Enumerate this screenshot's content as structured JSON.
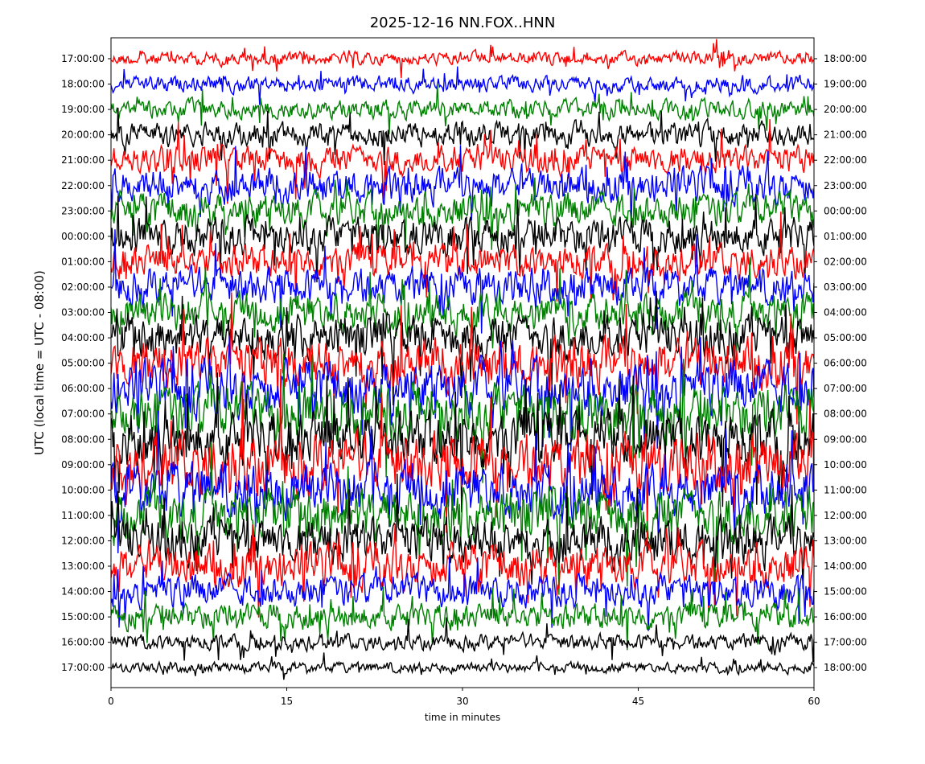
{
  "chart_data": {
    "type": "line",
    "title": "2025-12-16 NN.FOX..HNN",
    "xlabel": "time in minutes",
    "ylabel": "UTC (local time = UTC - 08:00)",
    "xlim": [
      0,
      60
    ],
    "x_ticks": [
      "0",
      "15",
      "30",
      "45",
      "60"
    ],
    "x_tick_values": [
      0,
      15,
      30,
      45,
      60
    ],
    "y_ticks_left": [
      "17:00:00",
      "18:00:00",
      "19:00:00",
      "20:00:00",
      "21:00:00",
      "22:00:00",
      "23:00:00",
      "00:00:00",
      "01:00:00",
      "02:00:00",
      "03:00:00",
      "04:00:00",
      "05:00:00",
      "06:00:00",
      "07:00:00",
      "08:00:00",
      "09:00:00",
      "10:00:00",
      "11:00:00",
      "12:00:00",
      "13:00:00",
      "14:00:00",
      "15:00:00",
      "16:00:00",
      "17:00:00"
    ],
    "y_ticks_right": [
      "18:00:00",
      "19:00:00",
      "20:00:00",
      "21:00:00",
      "22:00:00",
      "23:00:00",
      "00:00:00",
      "01:00:00",
      "02:00:00",
      "03:00:00",
      "04:00:00",
      "05:00:00",
      "06:00:00",
      "07:00:00",
      "08:00:00",
      "09:00:00",
      "10:00:00",
      "11:00:00",
      "12:00:00",
      "13:00:00",
      "14:00:00",
      "15:00:00",
      "16:00:00",
      "17:00:00",
      "18:00:00"
    ],
    "trace_colors": [
      "#ff0000",
      "#0000ff",
      "#008000",
      "#000000"
    ],
    "rows": [
      {
        "color": "#ff0000",
        "amp": 0.5
      },
      {
        "color": "#0000ff",
        "amp": 0.6
      },
      {
        "color": "#008000",
        "amp": 0.7
      },
      {
        "color": "#000000",
        "amp": 0.9
      },
      {
        "color": "#ff0000",
        "amp": 1.1
      },
      {
        "color": "#0000ff",
        "amp": 1.3
      },
      {
        "color": "#008000",
        "amp": 1.3
      },
      {
        "color": "#000000",
        "amp": 1.4
      },
      {
        "color": "#ff0000",
        "amp": 1.3
      },
      {
        "color": "#0000ff",
        "amp": 1.4
      },
      {
        "color": "#008000",
        "amp": 1.5
      },
      {
        "color": "#000000",
        "amp": 1.7
      },
      {
        "color": "#ff0000",
        "amp": 1.9
      },
      {
        "color": "#0000ff",
        "amp": 2.0
      },
      {
        "color": "#008000",
        "amp": 2.1
      },
      {
        "color": "#000000",
        "amp": 2.2
      },
      {
        "color": "#ff0000",
        "amp": 2.3
      },
      {
        "color": "#0000ff",
        "amp": 2.1
      },
      {
        "color": "#008000",
        "amp": 2.0
      },
      {
        "color": "#000000",
        "amp": 1.8
      },
      {
        "color": "#ff0000",
        "amp": 1.6
      },
      {
        "color": "#0000ff",
        "amp": 1.2
      },
      {
        "color": "#008000",
        "amp": 1.0
      },
      {
        "color": "#000000",
        "amp": 0.6
      },
      {
        "color": "#000000",
        "amp": 0.4
      }
    ]
  }
}
